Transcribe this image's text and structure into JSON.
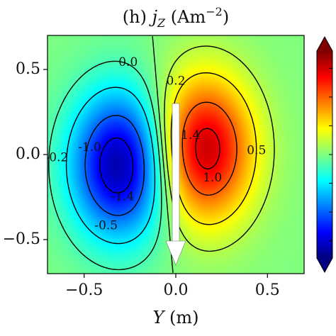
{
  "chart_data": {
    "type": "heatmap",
    "title": {
      "prefix": "(h) ",
      "var": "j",
      "sub": "Z",
      "unit": " (Am",
      "sup": "−2",
      "close": ")"
    },
    "xlabel": {
      "var": "Y",
      "unit": " (m)"
    },
    "ylabel": "",
    "xlim": [
      -0.7,
      0.7
    ],
    "ylim": [
      -0.7,
      0.7
    ],
    "xticks": [
      -0.5,
      0.0,
      0.5
    ],
    "xtick_labels": [
      "−0.5",
      "0.0",
      "0.5"
    ],
    "yticks": [
      0.5,
      0.0,
      -0.5
    ],
    "ytick_labels": [
      "0.5",
      "0.0",
      "−0.5"
    ],
    "colormap": "jet",
    "colorbar": {
      "vmin": -1.8,
      "vmax": 1.8,
      "extend": "both",
      "tick_values": [
        -1.5,
        -1.0,
        -0.5,
        0.0,
        0.5,
        1.0,
        1.5
      ]
    },
    "field": {
      "negative_lobe": {
        "center": [
          -0.3,
          -0.06
        ],
        "peak": -1.7
      },
      "positive_lobe": {
        "center": [
          0.15,
          0.03
        ],
        "peak": 1.6
      },
      "background": 0.0
    },
    "contour_levels": [
      -1.4,
      -1.0,
      -0.5,
      -0.2,
      0.0,
      0.2,
      0.5,
      1.0,
      1.4
    ],
    "contour_labels": [
      {
        "text": "0.0",
        "at": [
          -0.26,
          0.54
        ]
      },
      {
        "text": "0.2",
        "at": [
          0.0,
          0.43
        ]
      },
      {
        "text": "1.4",
        "at": [
          0.08,
          0.11
        ]
      },
      {
        "text": "0.5",
        "at": [
          0.44,
          0.02
        ]
      },
      {
        "text": "1.0",
        "at": [
          0.2,
          -0.14
        ]
      },
      {
        "text": "-0.2",
        "at": [
          -0.65,
          -0.02
        ]
      },
      {
        "text": "-1.0",
        "at": [
          -0.47,
          0.04
        ]
      },
      {
        "text": "-1.4",
        "at": [
          -0.29,
          -0.25
        ]
      },
      {
        "text": "-0.5",
        "at": [
          -0.38,
          -0.42
        ]
      }
    ],
    "arrow": {
      "from": [
        0.0,
        0.3
      ],
      "to": [
        0.0,
        -0.7
      ],
      "color": "#ffffff"
    },
    "colors": {
      "contour": "#000000",
      "frame": "#000000",
      "arrow": "#ffffff"
    }
  }
}
